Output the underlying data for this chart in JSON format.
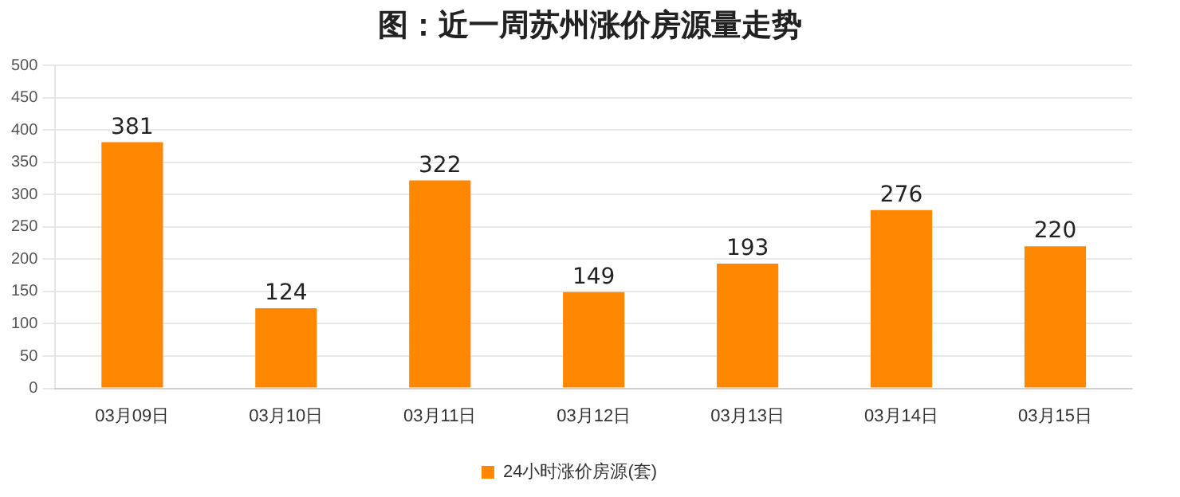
{
  "chart_data": {
    "type": "bar",
    "title": "图：近一周苏州涨价房源量走势",
    "categories": [
      "03月09日",
      "03月10日",
      "03月11日",
      "03月12日",
      "03月13日",
      "03月14日",
      "03月15日"
    ],
    "series": [
      {
        "name": "24小时涨价房源(套)",
        "color": "#ff8800",
        "values": [
          381,
          124,
          322,
          149,
          193,
          276,
          220
        ]
      }
    ],
    "ylim": [
      0,
      500
    ],
    "yticks": [
      0,
      50,
      100,
      150,
      200,
      250,
      300,
      350,
      400,
      450,
      500
    ],
    "grid": "y",
    "legend": "bottom",
    "data_labels": true
  }
}
